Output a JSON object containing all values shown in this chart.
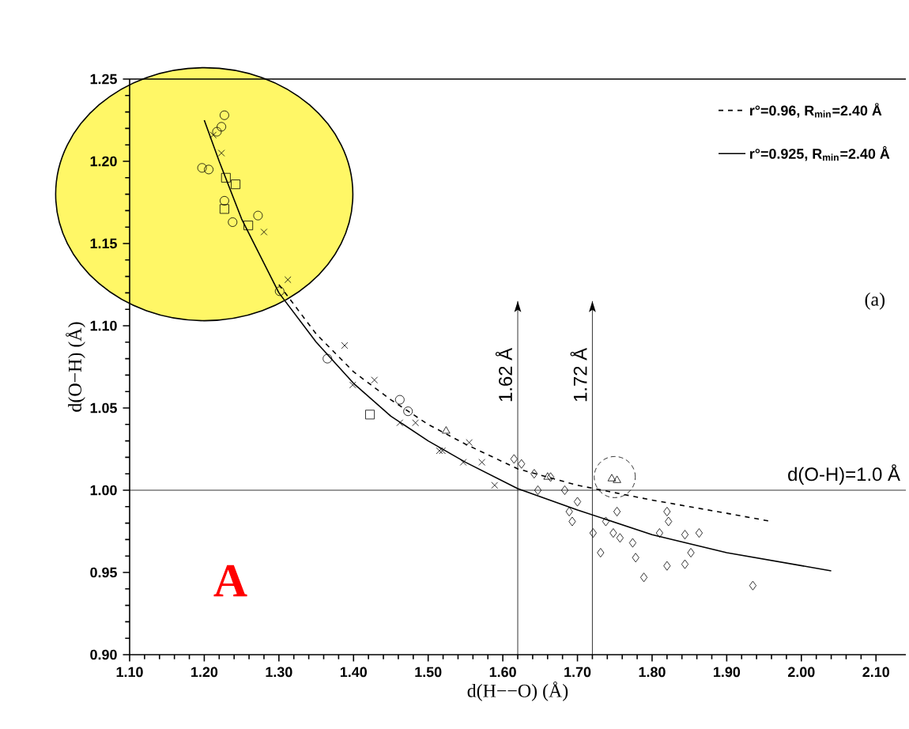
{
  "chart_data": {
    "type": "scatter",
    "xlabel": "d(H−−O)  (Å)",
    "ylabel": "d(O−H)  (Å)",
    "xlim": [
      1.1,
      2.14
    ],
    "ylim": [
      0.9,
      1.25
    ],
    "xticks": [
      {
        "value": 1.1,
        "label": "1.10"
      },
      {
        "value": 1.2,
        "label": "1.20"
      },
      {
        "value": 1.3,
        "label": "1.30"
      },
      {
        "value": 1.4,
        "label": "1.40"
      },
      {
        "value": 1.5,
        "label": "1.50"
      },
      {
        "value": 1.6,
        "label": "1.60"
      },
      {
        "value": 1.7,
        "label": "1.70"
      },
      {
        "value": 1.8,
        "label": "1.80"
      },
      {
        "value": 1.9,
        "label": "1.90"
      },
      {
        "value": 2.0,
        "label": "2.00"
      },
      {
        "value": 2.1,
        "label": "2.10"
      }
    ],
    "yticks": [
      {
        "value": 0.9,
        "label": "0.90"
      },
      {
        "value": 0.95,
        "label": "0.95"
      },
      {
        "value": 1.0,
        "label": "1.00"
      },
      {
        "value": 1.05,
        "label": "1.05"
      },
      {
        "value": 1.1,
        "label": "1.10"
      },
      {
        "value": 1.15,
        "label": "1.15"
      },
      {
        "value": 1.2,
        "label": "1.20"
      },
      {
        "value": 1.25,
        "label": "1.25"
      }
    ],
    "legend": "top right",
    "series": [
      {
        "type": "line",
        "name": "r°=0.96,  R$_{min}$=2.40 Å",
        "color": "#000000",
        "line_style": "dashed",
        "x": [
          1.3,
          1.35,
          1.4,
          1.45,
          1.5,
          1.55,
          1.62,
          1.7,
          1.8,
          1.9,
          1.96
        ],
        "values": [
          1.125,
          1.095,
          1.072,
          1.055,
          1.04,
          1.028,
          1.013,
          1.003,
          0.994,
          0.986,
          0.981
        ]
      },
      {
        "type": "line",
        "name": "r°=0.925,  R$_{min}$=2.40 Å",
        "color": "#000000",
        "line_style": "solid",
        "x": [
          1.2,
          1.22,
          1.25,
          1.3,
          1.35,
          1.4,
          1.45,
          1.5,
          1.55,
          1.62,
          1.7,
          1.8,
          1.9,
          2.04
        ],
        "values": [
          1.225,
          1.2,
          1.165,
          1.12,
          1.09,
          1.065,
          1.045,
          1.03,
          1.017,
          1.001,
          0.988,
          0.973,
          0.962,
          0.951
        ]
      },
      {
        "marker": "circle",
        "color": "#000000",
        "x": [
          1.227,
          1.223,
          1.217,
          1.197,
          1.206,
          1.227,
          1.238,
          1.272,
          1.301,
          1.365,
          1.462,
          1.473
        ],
        "values": [
          1.228,
          1.221,
          1.218,
          1.196,
          1.195,
          1.176,
          1.163,
          1.167,
          1.121,
          1.08,
          1.055,
          1.048
        ]
      },
      {
        "marker": "square",
        "color": "#000000",
        "x": [
          1.229,
          1.242,
          1.259,
          1.227,
          1.422
        ],
        "values": [
          1.19,
          1.186,
          1.161,
          1.171,
          1.046
        ]
      },
      {
        "marker": "cross",
        "color": "#000000",
        "x": [
          1.223,
          1.312,
          1.388,
          1.428,
          1.212,
          1.28,
          1.399,
          1.462,
          1.483,
          1.515,
          1.547,
          1.519,
          1.555,
          1.572,
          1.589
        ],
        "values": [
          1.205,
          1.128,
          1.088,
          1.067,
          1.216,
          1.157,
          1.064,
          1.041,
          1.041,
          1.024,
          1.017,
          1.024,
          1.029,
          1.017,
          1.003
        ]
      },
      {
        "marker": "triangle",
        "color": "#000000",
        "x": [
          1.524,
          1.746,
          1.753,
          1.66
        ],
        "values": [
          1.036,
          1.007,
          1.006,
          1.008
        ]
      },
      {
        "marker": "diamond",
        "color": "#000000",
        "x": [
          1.615,
          1.625,
          1.642,
          1.647,
          1.664,
          1.683,
          1.7,
          1.693,
          1.689,
          1.721,
          1.731,
          1.738,
          1.753,
          1.748,
          1.757,
          1.774,
          1.778,
          1.789,
          1.81,
          1.82,
          1.822,
          1.82,
          1.844,
          1.852,
          1.844,
          1.863,
          1.935
        ],
        "values": [
          1.019,
          1.016,
          1.01,
          1.0,
          1.008,
          1.0,
          0.993,
          0.981,
          0.987,
          0.974,
          0.962,
          0.981,
          0.987,
          0.974,
          0.971,
          0.968,
          0.959,
          0.947,
          0.974,
          0.987,
          0.981,
          0.954,
          0.973,
          0.962,
          0.955,
          0.974,
          0.942
        ]
      }
    ],
    "ref_lines": [
      {
        "axis": "x",
        "value": 1.62,
        "label": "1.62 Å"
      },
      {
        "axis": "x",
        "value": 1.72,
        "label": "1.72 Å"
      },
      {
        "axis": "y",
        "value": 1.0,
        "label": "d(O-H)=1.0 Å"
      }
    ],
    "annotations": [
      "(a)",
      "A"
    ]
  }
}
